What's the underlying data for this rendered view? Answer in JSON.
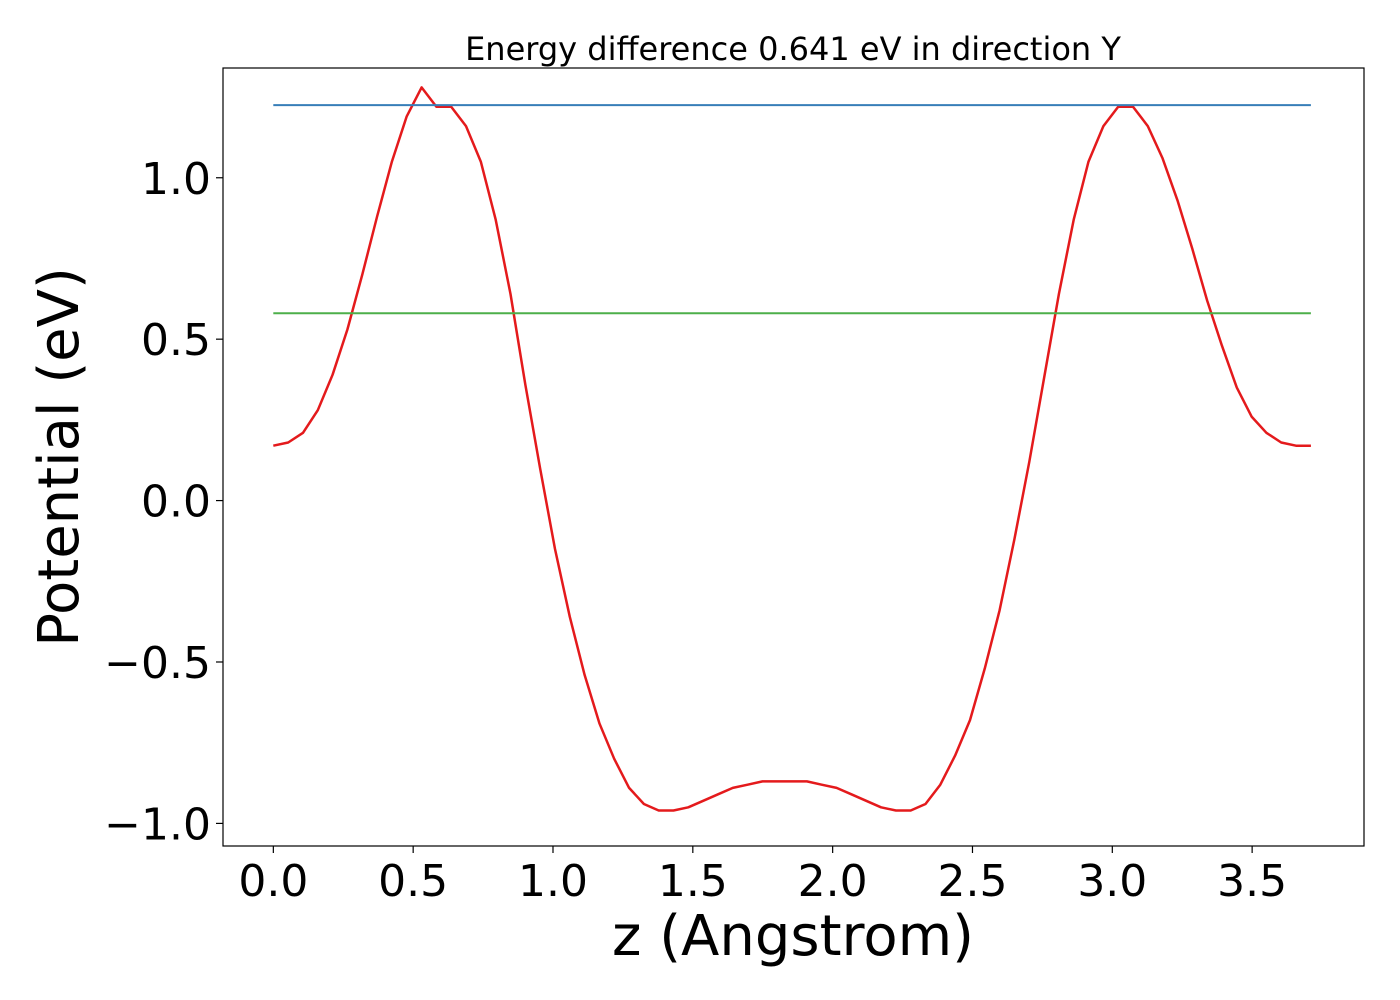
{
  "chart_data": {
    "type": "line",
    "title": "Energy difference 0.641 eV in direction Y",
    "xlabel": "z (Angstrom)",
    "ylabel": "Potential (eV)",
    "xlim": [
      -0.18,
      3.9
    ],
    "ylim": [
      -1.07,
      1.34
    ],
    "xticks": [
      0.0,
      0.5,
      1.0,
      1.5,
      2.0,
      2.5,
      3.0,
      3.5
    ],
    "xtick_labels": [
      "0.0",
      "0.5",
      "1.0",
      "1.5",
      "2.0",
      "2.5",
      "3.0",
      "3.5"
    ],
    "yticks": [
      -1.0,
      -0.5,
      0.0,
      0.5,
      1.0
    ],
    "ytick_labels": [
      "−1.0",
      "−0.5",
      "0.0",
      "0.5",
      "1.0"
    ],
    "grid": false,
    "legend": "none",
    "series": [
      {
        "color": "#e41a1c",
        "x": [
          0.0,
          0.053,
          0.106,
          0.159,
          0.212,
          0.265,
          0.318,
          0.371,
          0.424,
          0.477,
          0.53,
          0.583,
          0.636,
          0.689,
          0.742,
          0.795,
          0.848,
          0.901,
          0.954,
          1.007,
          1.06,
          1.113,
          1.166,
          1.219,
          1.272,
          1.325,
          1.378,
          1.431,
          1.484,
          1.537,
          1.59,
          1.643,
          1.696,
          1.749,
          1.802,
          1.855,
          1.908,
          1.961,
          2.014,
          2.067,
          2.12,
          2.173,
          2.226,
          2.279,
          2.332,
          2.385,
          2.438,
          2.491,
          2.544,
          2.597,
          2.65,
          2.703,
          2.756,
          2.809,
          2.862,
          2.915,
          2.968,
          3.021,
          3.074,
          3.127,
          3.18,
          3.233,
          3.286,
          3.339,
          3.392,
          3.445,
          3.498,
          3.551,
          3.604,
          3.657,
          3.71
        ],
        "y": [
          0.17,
          0.18,
          0.21,
          0.28,
          0.39,
          0.53,
          0.7,
          0.88,
          1.05,
          1.19,
          1.28,
          1.22,
          1.22,
          1.16,
          1.05,
          0.87,
          0.64,
          0.36,
          0.1,
          -0.15,
          -0.36,
          -0.54,
          -0.69,
          -0.8,
          -0.89,
          -0.94,
          -0.96,
          -0.96,
          -0.95,
          -0.93,
          -0.91,
          -0.89,
          -0.88,
          -0.87,
          -0.87,
          -0.87,
          -0.87,
          -0.88,
          -0.89,
          -0.91,
          -0.93,
          -0.95,
          -0.96,
          -0.96,
          -0.94,
          -0.88,
          -0.79,
          -0.68,
          -0.52,
          -0.34,
          -0.12,
          0.12,
          0.38,
          0.64,
          0.87,
          1.05,
          1.16,
          1.22,
          1.22,
          1.16,
          1.06,
          0.93,
          0.78,
          0.62,
          0.48,
          0.35,
          0.26,
          0.21,
          0.18,
          0.17,
          0.17
        ]
      },
      {
        "color": "#377eb8",
        "x": [
          0.0,
          3.71
        ],
        "y": [
          1.225,
          1.225
        ]
      },
      {
        "color": "#4daf4a",
        "x": [
          0.0,
          3.71
        ],
        "y": [
          0.58,
          0.58
        ]
      }
    ]
  }
}
